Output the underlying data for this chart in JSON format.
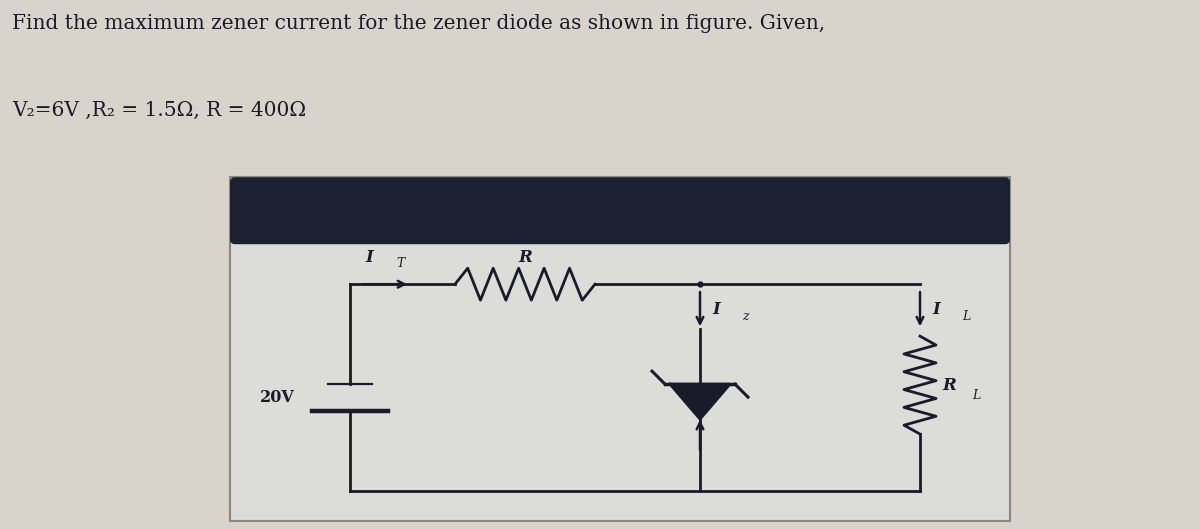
{
  "title_line1": "Find the maximum zener current for the zener diode as shown in figure. Given,",
  "title_line2": "V₂=6V ,R₂ = 1.5Ω, R = 400Ω",
  "voltage_label": "20V",
  "current_IT": "I",
  "current_IT_sub": "T",
  "resistor_label": "R",
  "current_IZ": "I",
  "current_IZ_sub": "z",
  "current_IL": "I",
  "current_IL_sub": "L",
  "load_label": "R",
  "load_label_sub": "L",
  "top_bg": "#d8d4cc",
  "circuit_outer_bg": "#c8c4bc",
  "circuit_inner_bg": "#dcdcd8",
  "dark_bar_color": "#1c2030",
  "text_color": "#1a1a2a",
  "circuit_line_color": "#1a1a2a",
  "fig_bg": "#ccc8c0"
}
